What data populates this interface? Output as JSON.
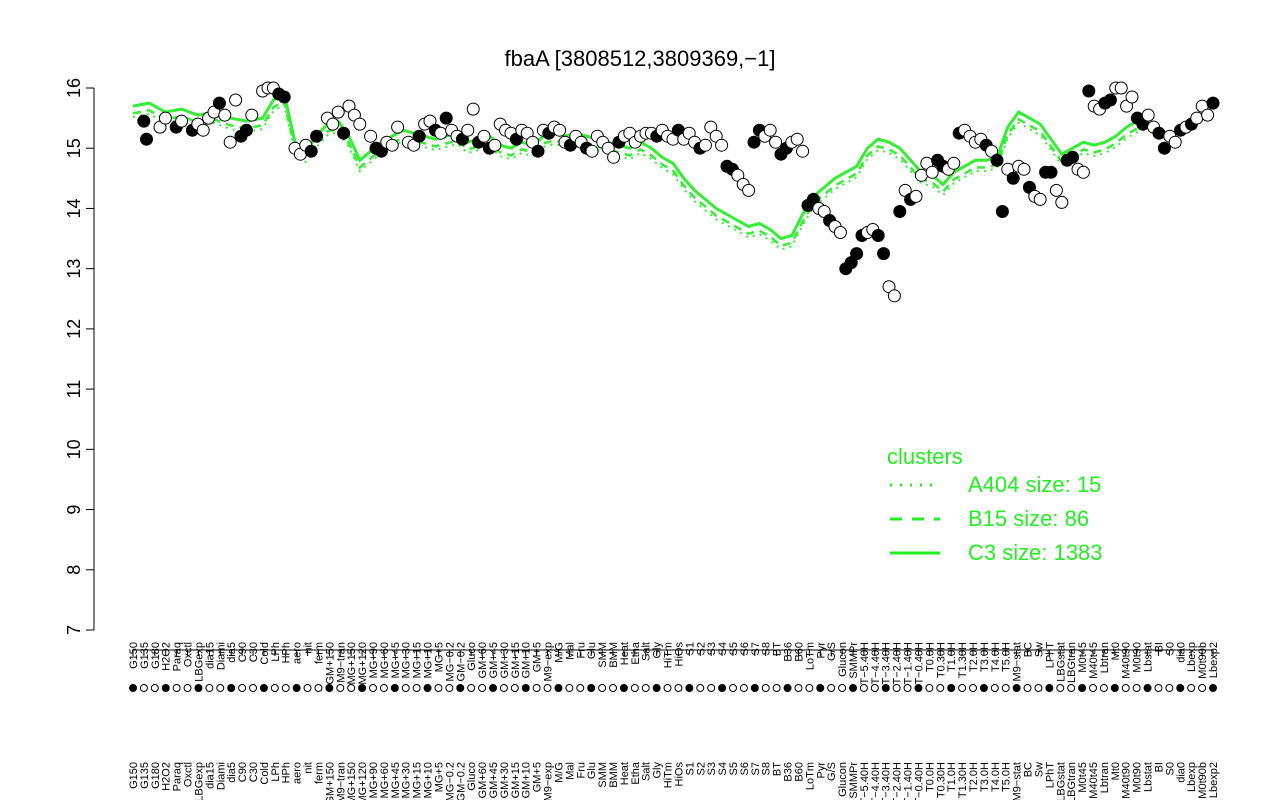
{
  "chart_data": {
    "type": "scatter",
    "title": "fbaA [3808512,3809369,−1]",
    "xlabel": "",
    "ylabel": "",
    "ylim": [
      7,
      16
    ],
    "yticks": [
      7,
      8,
      9,
      10,
      11,
      12,
      13,
      14,
      15,
      16
    ],
    "xticks_top": [
      "G150",
      "G135",
      "G180",
      "H2O2",
      "Paraq",
      "Oxctl",
      "LBGexp",
      "dia15",
      "Diami",
      "dia5",
      "C90",
      "C30",
      "Cold",
      "LPh",
      "HPh",
      "aero",
      "nit",
      "ferm",
      "GM+150",
      "M9−tran",
      "MG+150",
      "MG+120",
      "MG+90",
      "MG+60",
      "MG+45",
      "MG+30",
      "MG+15",
      "MG+10",
      "MG+5",
      "MG−0.2",
      "GM−0.2",
      "Gluco",
      "GM+60",
      "GM+45",
      "GM+30",
      "GM+15",
      "GM+10",
      "GM+5",
      "M9−exp",
      "M/G",
      "Mal",
      "Fru",
      "Glu",
      "SMM",
      "BMM",
      "Heat",
      "Etha",
      "Salt",
      "Gly",
      "HiTm",
      "HiOs",
      "S1",
      "S2",
      "S3",
      "S4",
      "S5",
      "S6",
      "S7",
      "S8",
      "BT",
      "B36",
      "B60",
      "LoTm",
      "Pyr",
      "G/S",
      "Glucon",
      "SMMPr",
      "T−5.40H",
      "T−4.40H",
      "T−3.40H",
      "T−2.40H",
      "T−1.40H",
      "T−0.40H",
      "T0.0H",
      "T0.30H",
      "T1.0H",
      "T1.30H",
      "T2.0H",
      "T3.0H",
      "T4.0H",
      "T5.0H",
      "M9−stat",
      "BC",
      "Sw",
      "LPhT",
      "LBGstat",
      "LBGtran",
      "M0t45",
      "M40t45",
      "Lbtran",
      "Mt0",
      "M40t90",
      "M0t90",
      "Lbstat",
      "BI",
      "S0",
      "dia0",
      "Lbexp",
      "M0t90b",
      "Lbexp2"
    ],
    "legend": {
      "title": "clusters",
      "placement": "right",
      "entries": [
        {
          "label": "A404 size: 15",
          "style": "dotted"
        },
        {
          "label": "B15 size: 86",
          "style": "dashed"
        },
        {
          "label": "C3 size: 1383",
          "style": "solid"
        }
      ]
    },
    "colors": {
      "line": "#33ee33",
      "legend": "#22ee22",
      "point_filled": "#000000",
      "point_open": "#ffffff",
      "axis": "#000000"
    },
    "line_c3": [
      [
        0,
        15.7
      ],
      [
        3,
        15.75
      ],
      [
        6,
        15.6
      ],
      [
        9,
        15.65
      ],
      [
        12,
        15.55
      ],
      [
        15,
        15.6
      ],
      [
        18,
        15.5
      ],
      [
        21,
        15.45
      ],
      [
        24,
        15.5
      ],
      [
        26,
        15.8
      ],
      [
        28,
        15.9
      ],
      [
        30,
        15.1
      ],
      [
        32,
        14.95
      ],
      [
        34,
        15.2
      ],
      [
        36,
        15.4
      ],
      [
        38,
        15.45
      ],
      [
        40,
        15.2
      ],
      [
        42,
        14.8
      ],
      [
        44,
        14.95
      ],
      [
        46,
        15.1
      ],
      [
        48,
        15.2
      ],
      [
        50,
        15.3
      ],
      [
        52,
        15.25
      ],
      [
        54,
        15.2
      ],
      [
        56,
        15.15
      ],
      [
        58,
        15.2
      ],
      [
        60,
        15.25
      ],
      [
        62,
        15.1
      ],
      [
        64,
        15.15
      ],
      [
        66,
        15.2
      ],
      [
        68,
        15.05
      ],
      [
        70,
        15.0
      ],
      [
        72,
        15.1
      ],
      [
        74,
        15.05
      ],
      [
        76,
        15.2
      ],
      [
        78,
        15.25
      ],
      [
        80,
        15.2
      ],
      [
        82,
        15.25
      ],
      [
        84,
        15.2
      ],
      [
        86,
        15.15
      ],
      [
        88,
        15.1
      ],
      [
        90,
        15.05
      ],
      [
        92,
        15.0
      ],
      [
        94,
        15.1
      ],
      [
        96,
        15.0
      ],
      [
        98,
        14.85
      ],
      [
        100,
        14.75
      ],
      [
        102,
        14.5
      ],
      [
        104,
        14.3
      ],
      [
        106,
        14.15
      ],
      [
        108,
        14.0
      ],
      [
        110,
        13.9
      ],
      [
        112,
        13.8
      ],
      [
        114,
        13.7
      ],
      [
        116,
        13.75
      ],
      [
        118,
        13.65
      ],
      [
        120,
        13.5
      ],
      [
        122,
        13.55
      ],
      [
        124,
        13.9
      ],
      [
        126,
        14.2
      ],
      [
        128,
        14.35
      ],
      [
        130,
        14.5
      ],
      [
        132,
        14.6
      ],
      [
        134,
        14.7
      ],
      [
        136,
        15.0
      ],
      [
        138,
        15.15
      ],
      [
        140,
        15.1
      ],
      [
        142,
        15.0
      ],
      [
        144,
        14.8
      ],
      [
        146,
        14.6
      ],
      [
        148,
        14.55
      ],
      [
        150,
        14.4
      ],
      [
        152,
        14.6
      ],
      [
        154,
        14.7
      ],
      [
        156,
        14.8
      ],
      [
        158,
        14.8
      ],
      [
        160,
        14.85
      ],
      [
        162,
        15.35
      ],
      [
        164,
        15.6
      ],
      [
        166,
        15.5
      ],
      [
        168,
        15.4
      ],
      [
        170,
        15.15
      ],
      [
        172,
        14.9
      ],
      [
        174,
        15.0
      ],
      [
        176,
        15.1
      ],
      [
        178,
        15.05
      ],
      [
        180,
        15.1
      ],
      [
        182,
        15.2
      ],
      [
        184,
        15.35
      ],
      [
        186,
        15.45
      ],
      [
        188,
        15.5
      ]
    ],
    "points": [
      [
        2,
        15.45,
        1
      ],
      [
        2.5,
        15.15,
        1
      ],
      [
        5,
        15.35,
        0
      ],
      [
        6,
        15.5,
        0
      ],
      [
        8,
        15.35,
        1
      ],
      [
        9,
        15.45,
        0
      ],
      [
        11,
        15.3,
        1
      ],
      [
        12,
        15.4,
        0
      ],
      [
        13,
        15.3,
        0
      ],
      [
        14,
        15.5,
        0
      ],
      [
        15,
        15.6,
        0
      ],
      [
        16,
        15.75,
        1
      ],
      [
        17,
        15.55,
        0
      ],
      [
        18,
        15.1,
        0
      ],
      [
        19,
        15.8,
        0
      ],
      [
        20,
        15.2,
        1
      ],
      [
        21,
        15.3,
        1
      ],
      [
        22,
        15.55,
        0
      ],
      [
        24,
        15.95,
        0
      ],
      [
        25,
        16.0,
        0
      ],
      [
        26,
        16.0,
        0
      ],
      [
        27,
        15.9,
        1
      ],
      [
        28,
        15.85,
        1
      ],
      [
        30,
        15.0,
        0
      ],
      [
        31,
        14.9,
        0
      ],
      [
        32,
        15.05,
        0
      ],
      [
        33,
        14.95,
        1
      ],
      [
        34,
        15.2,
        1
      ],
      [
        36,
        15.5,
        0
      ],
      [
        37,
        15.4,
        0
      ],
      [
        38,
        15.6,
        0
      ],
      [
        39,
        15.25,
        1
      ],
      [
        40,
        15.7,
        0
      ],
      [
        41,
        15.55,
        0
      ],
      [
        42,
        15.4,
        0
      ],
      [
        44,
        15.2,
        0
      ],
      [
        45,
        15.0,
        1
      ],
      [
        46,
        14.95,
        1
      ],
      [
        47,
        15.1,
        0
      ],
      [
        48,
        15.05,
        0
      ],
      [
        49,
        15.35,
        0
      ],
      [
        51,
        15.1,
        0
      ],
      [
        52,
        15.05,
        0
      ],
      [
        53,
        15.2,
        1
      ],
      [
        54,
        15.4,
        0
      ],
      [
        55,
        15.45,
        0
      ],
      [
        56,
        15.3,
        1
      ],
      [
        57,
        15.25,
        0
      ],
      [
        58,
        15.5,
        1
      ],
      [
        59,
        15.3,
        0
      ],
      [
        60,
        15.2,
        0
      ],
      [
        61,
        15.15,
        1
      ],
      [
        62,
        15.3,
        0
      ],
      [
        63,
        15.65,
        0
      ],
      [
        64,
        15.1,
        1
      ],
      [
        65,
        15.2,
        0
      ],
      [
        66,
        15.0,
        1
      ],
      [
        67,
        15.05,
        0
      ],
      [
        68,
        15.4,
        0
      ],
      [
        69,
        15.3,
        0
      ],
      [
        70,
        15.25,
        0
      ],
      [
        71,
        15.15,
        1
      ],
      [
        72,
        15.3,
        0
      ],
      [
        73,
        15.25,
        0
      ],
      [
        74,
        15.1,
        0
      ],
      [
        75,
        14.95,
        1
      ],
      [
        76,
        15.3,
        0
      ],
      [
        77,
        15.25,
        1
      ],
      [
        78,
        15.35,
        0
      ],
      [
        79,
        15.3,
        0
      ],
      [
        80,
        15.1,
        0
      ],
      [
        81,
        15.05,
        1
      ],
      [
        82,
        15.2,
        0
      ],
      [
        83,
        15.1,
        0
      ],
      [
        84,
        15.0,
        1
      ],
      [
        85,
        14.95,
        0
      ],
      [
        86,
        15.2,
        0
      ],
      [
        87,
        15.1,
        0
      ],
      [
        88,
        15.0,
        0
      ],
      [
        89,
        14.85,
        0
      ],
      [
        90,
        15.1,
        1
      ],
      [
        91,
        15.2,
        0
      ],
      [
        92,
        15.25,
        0
      ],
      [
        93,
        15.1,
        0
      ],
      [
        94,
        15.2,
        0
      ],
      [
        95,
        15.25,
        0
      ],
      [
        96,
        15.25,
        0
      ],
      [
        97,
        15.2,
        1
      ],
      [
        98,
        15.3,
        0
      ],
      [
        99,
        15.2,
        0
      ],
      [
        100,
        15.15,
        0
      ],
      [
        101,
        15.3,
        1
      ],
      [
        102,
        15.15,
        0
      ],
      [
        103,
        15.25,
        0
      ],
      [
        104,
        15.1,
        0
      ],
      [
        105,
        15.0,
        1
      ],
      [
        106,
        15.05,
        0
      ],
      [
        107,
        15.35,
        0
      ],
      [
        108,
        15.2,
        0
      ],
      [
        109,
        15.05,
        0
      ],
      [
        110,
        14.7,
        1
      ],
      [
        111,
        14.65,
        1
      ],
      [
        112,
        14.55,
        0
      ],
      [
        113,
        14.4,
        0
      ],
      [
        114,
        14.3,
        0
      ],
      [
        115,
        15.1,
        1
      ],
      [
        116,
        15.3,
        1
      ],
      [
        117,
        15.2,
        0
      ],
      [
        118,
        15.3,
        0
      ],
      [
        119,
        15.1,
        0
      ],
      [
        120,
        14.9,
        1
      ],
      [
        121,
        15.0,
        1
      ],
      [
        122,
        15.1,
        0
      ],
      [
        123,
        15.15,
        0
      ],
      [
        124,
        14.95,
        0
      ],
      [
        125,
        14.05,
        1
      ],
      [
        126,
        14.15,
        1
      ],
      [
        127,
        14.0,
        0
      ],
      [
        128,
        13.95,
        0
      ],
      [
        129,
        13.8,
        1
      ],
      [
        130,
        13.7,
        0
      ],
      [
        131,
        13.6,
        0
      ],
      [
        132,
        13.0,
        1
      ],
      [
        133,
        13.1,
        1
      ],
      [
        134,
        13.25,
        1
      ],
      [
        135,
        13.55,
        1
      ],
      [
        136,
        13.6,
        0
      ],
      [
        137,
        13.65,
        0
      ],
      [
        138,
        13.55,
        1
      ],
      [
        139,
        13.25,
        1
      ],
      [
        140,
        12.7,
        0
      ],
      [
        141,
        12.55,
        0
      ],
      [
        142,
        13.95,
        1
      ],
      [
        143,
        14.3,
        0
      ],
      [
        144,
        14.15,
        1
      ],
      [
        145,
        14.2,
        0
      ],
      [
        146,
        14.55,
        0
      ],
      [
        147,
        14.75,
        0
      ],
      [
        148,
        14.6,
        0
      ],
      [
        149,
        14.8,
        1
      ],
      [
        150,
        14.7,
        1
      ],
      [
        151,
        14.65,
        0
      ],
      [
        152,
        14.75,
        0
      ],
      [
        153,
        15.25,
        1
      ],
      [
        154,
        15.3,
        0
      ],
      [
        155,
        15.2,
        0
      ],
      [
        156,
        15.1,
        0
      ],
      [
        157,
        15.15,
        0
      ],
      [
        158,
        15.05,
        1
      ],
      [
        159,
        14.95,
        0
      ],
      [
        160,
        14.8,
        1
      ],
      [
        161,
        13.95,
        1
      ],
      [
        162,
        14.65,
        0
      ],
      [
        163,
        14.5,
        1
      ],
      [
        164,
        14.7,
        0
      ],
      [
        165,
        14.65,
        0
      ],
      [
        166,
        14.35,
        1
      ],
      [
        167,
        14.2,
        0
      ],
      [
        168,
        14.15,
        0
      ],
      [
        169,
        14.6,
        1
      ],
      [
        170,
        14.6,
        1
      ],
      [
        171,
        14.3,
        0
      ],
      [
        172,
        14.1,
        0
      ],
      [
        173,
        14.8,
        1
      ],
      [
        174,
        14.85,
        1
      ],
      [
        175,
        14.65,
        0
      ],
      [
        176,
        14.6,
        0
      ],
      [
        177,
        15.95,
        1
      ],
      [
        178,
        15.7,
        0
      ],
      [
        179,
        15.65,
        0
      ],
      [
        180,
        15.75,
        1
      ],
      [
        181,
        15.8,
        1
      ],
      [
        182,
        16.0,
        0
      ],
      [
        183,
        16.0,
        0
      ],
      [
        184,
        15.7,
        0
      ],
      [
        185,
        15.85,
        0
      ],
      [
        186,
        15.5,
        1
      ],
      [
        187,
        15.4,
        1
      ],
      [
        188,
        15.55,
        0
      ],
      [
        189,
        15.35,
        0
      ],
      [
        190,
        15.25,
        1
      ],
      [
        191,
        15.0,
        1
      ],
      [
        192,
        15.2,
        0
      ],
      [
        193,
        15.1,
        0
      ],
      [
        194,
        15.3,
        1
      ],
      [
        195,
        15.35,
        0
      ],
      [
        196,
        15.4,
        1
      ],
      [
        197,
        15.5,
        0
      ],
      [
        198,
        15.7,
        0
      ],
      [
        199,
        15.55,
        0
      ],
      [
        200,
        15.75,
        1
      ]
    ],
    "x_max": 200
  }
}
